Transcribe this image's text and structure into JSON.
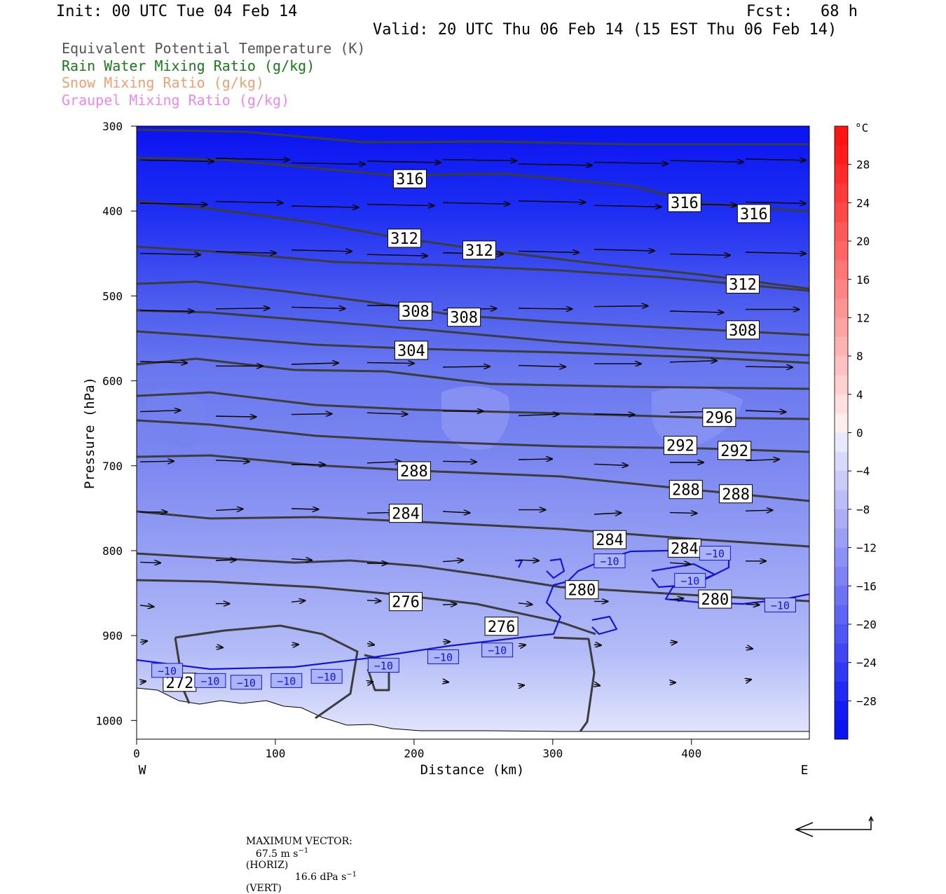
{
  "header": {
    "init": "Init: 00 UTC Tue 04 Feb 14",
    "fcst": "Fcst:   68 h",
    "valid": "Valid: 20 UTC Thu 06 Feb 14 (15 EST Thu 06 Feb 14)"
  },
  "fields": [
    {
      "label": "Equivalent Potential Temperature (K)",
      "color": "#555555"
    },
    {
      "label": "Rain Water Mixing Ratio (g/kg)",
      "color": "#1a7a1a"
    },
    {
      "label": "Snow Mixing Ratio (g/kg)",
      "color": "#f0a070"
    },
    {
      "label": "Graupel Mixing Ratio (g/kg)",
      "color": "#ee88ee"
    }
  ],
  "chart_data": {
    "type": "heatmap",
    "xlabel": "Distance (km)",
    "ylabel": "Pressure (hPa)",
    "xlim": [
      0,
      485
    ],
    "ylim": [
      1022,
      300
    ],
    "x_ticks": [
      0,
      100,
      200,
      300,
      400
    ],
    "y_ticks": [
      300,
      400,
      500,
      600,
      700,
      800,
      900,
      1000
    ],
    "x_end_labels": {
      "left": "W",
      "right": "E"
    },
    "colorbar": {
      "unit": "°C",
      "tick_labels": [
        "28",
        "24",
        "20",
        "16",
        "12",
        "8",
        "4",
        "0",
        "−4",
        "−8",
        "−12",
        "−16",
        "−20",
        "−24",
        "−28"
      ],
      "tick_values": [
        28,
        24,
        20,
        16,
        12,
        8,
        4,
        0,
        -4,
        -8,
        -12,
        -16,
        -20,
        -24,
        -28
      ],
      "range": [
        -32,
        32
      ]
    },
    "theta_e_contour_labels": [
      {
        "text": "316",
        "x": 197,
        "p": 362
      },
      {
        "text": "316",
        "x": 395,
        "p": 390
      },
      {
        "text": "316",
        "x": 445,
        "p": 403
      },
      {
        "text": "312",
        "x": 193,
        "p": 432
      },
      {
        "text": "312",
        "x": 247,
        "p": 446
      },
      {
        "text": "312",
        "x": 437,
        "p": 486
      },
      {
        "text": "308",
        "x": 201,
        "p": 518
      },
      {
        "text": "308",
        "x": 236,
        "p": 525
      },
      {
        "text": "308",
        "x": 437,
        "p": 540
      },
      {
        "text": "304",
        "x": 198,
        "p": 564
      },
      {
        "text": "296",
        "x": 420,
        "p": 643
      },
      {
        "text": "292",
        "x": 392,
        "p": 676
      },
      {
        "text": "292",
        "x": 431,
        "p": 682
      },
      {
        "text": "288",
        "x": 200,
        "p": 706
      },
      {
        "text": "288",
        "x": 396,
        "p": 728
      },
      {
        "text": "288",
        "x": 432,
        "p": 733
      },
      {
        "text": "284",
        "x": 194,
        "p": 756
      },
      {
        "text": "284",
        "x": 341,
        "p": 787
      },
      {
        "text": "284",
        "x": 395,
        "p": 797
      },
      {
        "text": "280",
        "x": 321,
        "p": 846
      },
      {
        "text": "280",
        "x": 417,
        "p": 857
      },
      {
        "text": "276",
        "x": 194,
        "p": 860
      },
      {
        "text": "276",
        "x": 263,
        "p": 889
      },
      {
        "text": "272",
        "x": 31,
        "p": 955
      }
    ],
    "temperature_contour_labels": [
      {
        "text": "−10",
        "x": 22,
        "p": 941
      },
      {
        "text": "−10",
        "x": 53,
        "p": 953
      },
      {
        "text": "−10",
        "x": 79,
        "p": 955
      },
      {
        "text": "−10",
        "x": 108,
        "p": 953
      },
      {
        "text": "−10",
        "x": 137,
        "p": 948
      },
      {
        "text": "−10",
        "x": 178,
        "p": 935
      },
      {
        "text": "−10",
        "x": 221,
        "p": 925
      },
      {
        "text": "−10",
        "x": 260,
        "p": 917
      },
      {
        "text": "−10",
        "x": 341,
        "p": 812
      },
      {
        "text": "−10",
        "x": 417,
        "p": 803
      },
      {
        "text": "−10",
        "x": 399,
        "p": 835
      },
      {
        "text": "−10",
        "x": 464,
        "p": 864
      }
    ]
  },
  "footer": {
    "max_vector_label": "MAXIMUM VECTOR:",
    "horiz_value": "67.5 m s",
    "horiz_exp": "−1",
    "horiz_tag": "(HORIZ)",
    "vert_value": "16.6 dPa s",
    "vert_exp": "−1",
    "vert_tag": "(VERT)"
  }
}
